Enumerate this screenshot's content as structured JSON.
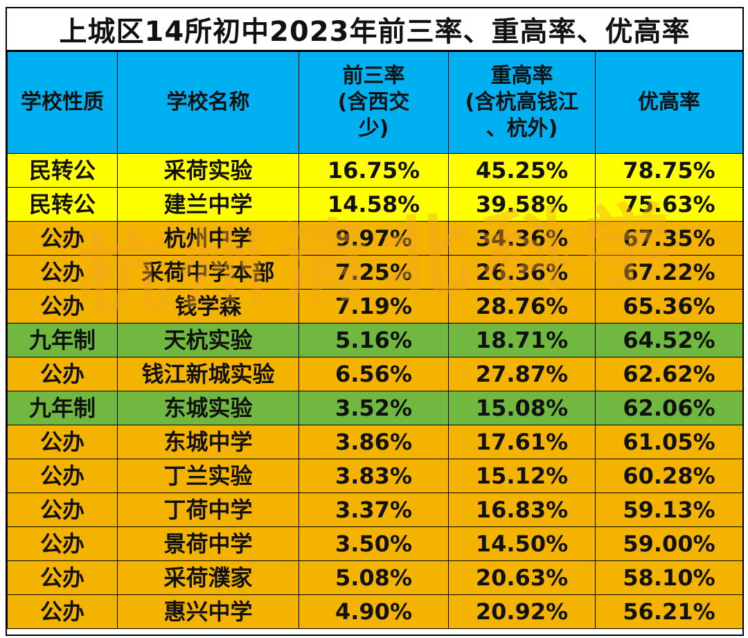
{
  "title": "上城区14所初中2023年前三率、重高率、优高率",
  "headers": [
    "学校性质",
    "学校名称",
    "前三率\n(含西交\n少)",
    "重高率\n(含杭高钱江\n、杭外)",
    "优高率"
  ],
  "watermark": "杭州清北科学",
  "colors": {
    "header": "#00b0f0",
    "yellow": "#ffff00",
    "orange": "#f3b300",
    "green": "#70b840"
  },
  "rows": [
    {
      "type": "民转公",
      "name": "采荷实验",
      "top3": "16.75%",
      "key": "45.25%",
      "excellent": "78.75%",
      "color": "yellow"
    },
    {
      "type": "民转公",
      "name": "建兰中学",
      "top3": "14.58%",
      "key": "39.58%",
      "excellent": "75.63%",
      "color": "yellow"
    },
    {
      "type": "公办",
      "name": "杭州中学",
      "top3": "9.97%",
      "key": "34.36%",
      "excellent": "67.35%",
      "color": "orange"
    },
    {
      "type": "公办",
      "name": "采荷中学本部",
      "top3": "7.25%",
      "key": "26.36%",
      "excellent": "67.22%",
      "color": "orange"
    },
    {
      "type": "公办",
      "name": "钱学森",
      "top3": "7.19%",
      "key": "28.76%",
      "excellent": "65.36%",
      "color": "orange"
    },
    {
      "type": "九年制",
      "name": "天杭实验",
      "top3": "5.16%",
      "key": "18.71%",
      "excellent": "64.52%",
      "color": "green"
    },
    {
      "type": "公办",
      "name": "钱江新城实验",
      "top3": "6.56%",
      "key": "27.87%",
      "excellent": "62.62%",
      "color": "orange"
    },
    {
      "type": "九年制",
      "name": "东城实验",
      "top3": "3.52%",
      "key": "15.08%",
      "excellent": "62.06%",
      "color": "green"
    },
    {
      "type": "公办",
      "name": "东城中学",
      "top3": "3.86%",
      "key": "17.61%",
      "excellent": "61.05%",
      "color": "orange"
    },
    {
      "type": "公办",
      "name": "丁兰实验",
      "top3": "3.83%",
      "key": "15.12%",
      "excellent": "60.28%",
      "color": "orange"
    },
    {
      "type": "公办",
      "name": "丁荷中学",
      "top3": "3.37%",
      "key": "16.83%",
      "excellent": "59.13%",
      "color": "orange"
    },
    {
      "type": "公办",
      "name": "景荷中学",
      "top3": "3.50%",
      "key": "14.50%",
      "excellent": "59.00%",
      "color": "orange"
    },
    {
      "type": "公办",
      "name": "采荷濮家",
      "top3": "5.08%",
      "key": "20.63%",
      "excellent": "58.10%",
      "color": "orange"
    },
    {
      "type": "公办",
      "name": "惠兴中学",
      "top3": "4.90%",
      "key": "20.92%",
      "excellent": "56.21%",
      "color": "orange"
    }
  ]
}
